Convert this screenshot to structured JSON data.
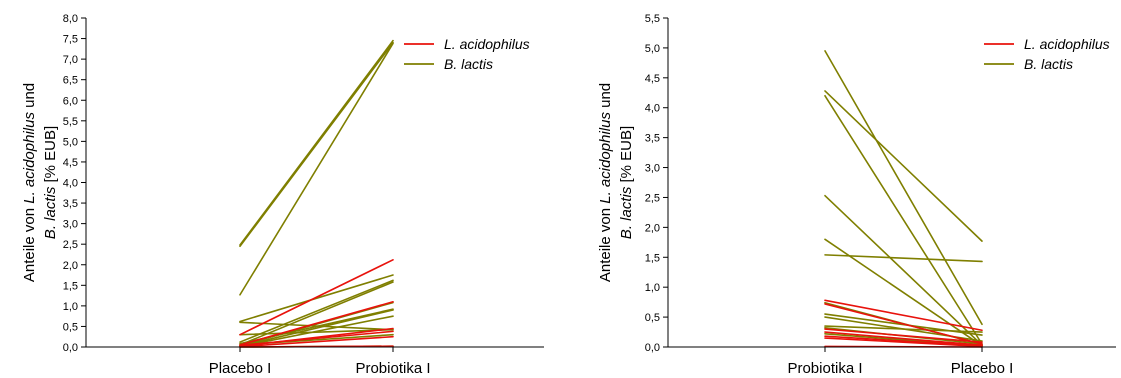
{
  "chart_data": [
    {
      "type": "line",
      "categories": [
        "Placebo I",
        "Probiotika I"
      ],
      "ylabel_parts": [
        {
          "text": "Anteile von ",
          "italic": false
        },
        {
          "text": "L. acidophilus",
          "italic": true
        },
        {
          "text": " und",
          "italic": false
        }
      ],
      "ylabel_parts2": [
        {
          "text": "B. lactis",
          "italic": true
        },
        {
          "text": " [% EUB]",
          "italic": false
        }
      ],
      "ylim": [
        0,
        8
      ],
      "yticks": [
        "0,0",
        "0,5",
        "1,0",
        "1,5",
        "2,0",
        "2,5",
        "3,0",
        "3,5",
        "4,0",
        "4,5",
        "5,0",
        "5,5",
        "6,0",
        "6,5",
        "7,0",
        "7,5",
        "8,0"
      ],
      "legend_position": "top-right",
      "colors": {
        "L. acidophilus": "#e8120c",
        "B. lactis": "#7f7f00"
      },
      "series": [
        {
          "name": "L. acidophilus",
          "values": [
            0.3,
            2.12
          ]
        },
        {
          "name": "L. acidophilus",
          "values": [
            0.05,
            1.1
          ]
        },
        {
          "name": "L. acidophilus",
          "values": [
            0.02,
            0.45
          ]
        },
        {
          "name": "L. acidophilus",
          "values": [
            0.04,
            0.38
          ]
        },
        {
          "name": "L. acidophilus",
          "values": [
            0.01,
            0.25
          ]
        },
        {
          "name": "L. acidophilus",
          "values": [
            0.0,
            0.02
          ]
        },
        {
          "name": "B. lactis",
          "values": [
            2.48,
            7.45
          ]
        },
        {
          "name": "B. lactis",
          "values": [
            2.45,
            7.4
          ]
        },
        {
          "name": "B. lactis",
          "values": [
            1.27,
            7.38
          ]
        },
        {
          "name": "B. lactis",
          "values": [
            0.62,
            1.75
          ]
        },
        {
          "name": "B. lactis",
          "values": [
            0.6,
            0.42
          ]
        },
        {
          "name": "B. lactis",
          "values": [
            0.12,
            1.62
          ]
        },
        {
          "name": "B. lactis",
          "values": [
            0.05,
            1.58
          ]
        },
        {
          "name": "B. lactis",
          "values": [
            0.03,
            1.08
          ]
        },
        {
          "name": "B. lactis",
          "values": [
            0.08,
            0.92
          ]
        },
        {
          "name": "B. lactis",
          "values": [
            0.02,
            0.9
          ]
        },
        {
          "name": "B. lactis",
          "values": [
            0.01,
            0.75
          ]
        },
        {
          "name": "B. lactis",
          "values": [
            0.3,
            0.42
          ]
        },
        {
          "name": "B. lactis",
          "values": [
            0.05,
            0.3
          ]
        },
        {
          "name": "B. lactis",
          "values": [
            0.0,
            0.02
          ]
        }
      ]
    },
    {
      "type": "line",
      "categories": [
        "Probiotika I",
        "Placebo I"
      ],
      "ylabel_parts": [
        {
          "text": "Anteile von ",
          "italic": false
        },
        {
          "text": "L. acidophilus",
          "italic": true
        },
        {
          "text": " und",
          "italic": false
        }
      ],
      "ylabel_parts2": [
        {
          "text": "B. lactis",
          "italic": true
        },
        {
          "text": " [% EUB]",
          "italic": false
        }
      ],
      "ylim": [
        0,
        5.5
      ],
      "yticks": [
        "0,0",
        "0,5",
        "1,0",
        "1,5",
        "2,0",
        "2,5",
        "3,0",
        "3,5",
        "4,0",
        "4,5",
        "5,0",
        "5,5"
      ],
      "legend_position": "top-right",
      "colors": {
        "L. acidophilus": "#e8120c",
        "B. lactis": "#7f7f00"
      },
      "series": [
        {
          "name": "L. acidophilus",
          "values": [
            0.78,
            0.28
          ]
        },
        {
          "name": "L. acidophilus",
          "values": [
            0.72,
            0.05
          ]
        },
        {
          "name": "L. acidophilus",
          "values": [
            0.3,
            0.08
          ]
        },
        {
          "name": "L. acidophilus",
          "values": [
            0.25,
            0.03
          ]
        },
        {
          "name": "L. acidophilus",
          "values": [
            0.18,
            0.02
          ]
        },
        {
          "name": "L. acidophilus",
          "values": [
            0.15,
            0.01
          ]
        },
        {
          "name": "L. acidophilus",
          "values": [
            0.01,
            0.0
          ]
        },
        {
          "name": "B. lactis",
          "values": [
            4.95,
            0.38
          ]
        },
        {
          "name": "B. lactis",
          "values": [
            4.28,
            1.77
          ]
        },
        {
          "name": "B. lactis",
          "values": [
            4.2,
            0.05
          ]
        },
        {
          "name": "B. lactis",
          "values": [
            2.53,
            0.03
          ]
        },
        {
          "name": "B. lactis",
          "values": [
            1.8,
            0.02
          ]
        },
        {
          "name": "B. lactis",
          "values": [
            1.54,
            1.43
          ]
        },
        {
          "name": "B. lactis",
          "values": [
            0.74,
            0.04
          ]
        },
        {
          "name": "B. lactis",
          "values": [
            0.55,
            0.2
          ]
        },
        {
          "name": "B. lactis",
          "values": [
            0.5,
            0.1
          ]
        },
        {
          "name": "B. lactis",
          "values": [
            0.35,
            0.25
          ]
        },
        {
          "name": "B. lactis",
          "values": [
            0.32,
            0.05
          ]
        },
        {
          "name": "B. lactis",
          "values": [
            0.22,
            0.02
          ]
        }
      ]
    }
  ],
  "legend": {
    "entries": [
      {
        "label": "L. acidophilus",
        "color": "#e8120c"
      },
      {
        "label": "B. lactis",
        "color": "#7f7f00"
      }
    ]
  }
}
